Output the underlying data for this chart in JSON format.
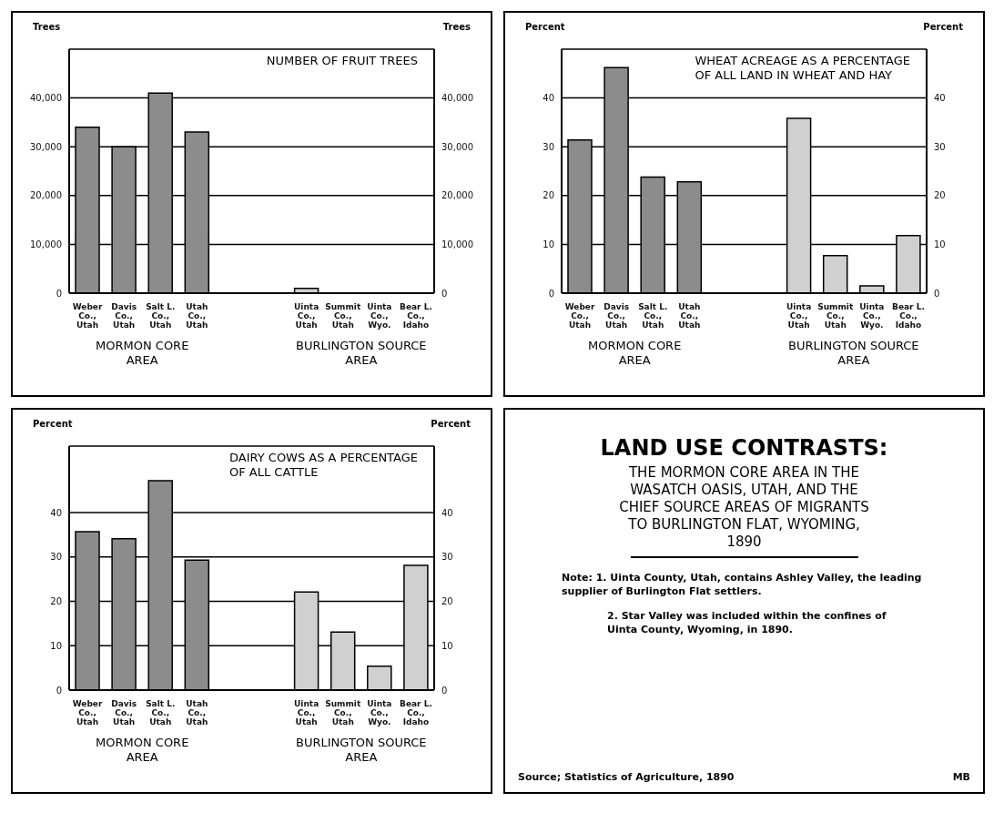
{
  "chart_data": [
    {
      "type": "bar",
      "title": "NUMBER OF FRUIT TREES",
      "ylabel": "Trees",
      "y2label": "Trees",
      "categories": [
        "Weber\nCo.,\nUtah",
        "Davis\nCo.,\nUtah",
        "Salt L.\nCo.,\nUtah",
        "Utah\nCo.,\nUtah",
        null,
        null,
        "Uinta\nCo.,\nUtah",
        "Summit\nCo.,\nUtah",
        "Uinta\nCo.,\nWyo.",
        "Bear L.\nCo.,\nIdaho"
      ],
      "values": [
        34000,
        30000,
        41000,
        33000,
        null,
        null,
        1000,
        0,
        0,
        0
      ],
      "colors": [
        "#8c8c8c",
        "#8c8c8c",
        "#8c8c8c",
        "#8c8c8c",
        null,
        null,
        "#d0d0d0",
        "#d0d0d0",
        "#d0d0d0",
        "#d0d0d0"
      ],
      "ylim": [
        0,
        50000
      ],
      "yticks": [
        0,
        {
          "value": 10000,
          "label": "10,000"
        },
        {
          "value": 20000,
          "label": "20,000"
        },
        {
          "value": 30000,
          "label": "30,000"
        },
        {
          "value": 40000,
          "label": "40,000"
        }
      ],
      "y2lim": [
        0,
        50000
      ],
      "y2ticks": [
        0,
        {
          "value": 10000,
          "label": "10,000"
        },
        {
          "value": 20000,
          "label": "20,000"
        },
        {
          "value": 30000,
          "label": "30,000"
        },
        {
          "value": 40000,
          "label": "40,000"
        }
      ],
      "grid": "y",
      "annotations": [
        "MORMON CORE\nAREA",
        "BURLINGTON SOURCE\nAREA"
      ]
    },
    {
      "type": "bar",
      "title": "WHEAT ACREAGE AS A PERCENTAGE\nOF ALL LAND IN WHEAT AND HAY",
      "ylabel": "Percent",
      "y2label": "Percent",
      "categories": [
        "Weber\nCo.,\nUtah",
        "Davis\nCo.,\nUtah",
        "Salt L.\nCo.,\nUtah",
        "Utah\nCo.,\nUtah",
        null,
        null,
        "Uinta\nCo.,\nUtah",
        "Summit\nCo.,\nUtah",
        "Uinta\nCo.,\nWyo.",
        "Bear L.\nCo.,\nIdaho"
      ],
      "values": [
        31.4,
        46.2,
        23.8,
        22.8,
        null,
        null,
        35.8,
        7.7,
        1.5,
        11.8
      ],
      "colors": [
        "#8c8c8c",
        "#8c8c8c",
        "#8c8c8c",
        "#8c8c8c",
        null,
        null,
        "#d0d0d0",
        "#d0d0d0",
        "#d0d0d0",
        "#d0d0d0"
      ],
      "ylim": [
        0,
        50
      ],
      "yticks": [
        0,
        10,
        20,
        30,
        40
      ],
      "y2lim": [
        0,
        50
      ],
      "y2ticks": [
        0,
        10,
        20,
        30,
        40
      ],
      "grid": "y",
      "annotations": [
        "MORMON CORE\nAREA",
        "BURLINGTON SOURCE\nAREA"
      ]
    },
    {
      "type": "bar",
      "title": "DAIRY COWS AS A PERCENTAGE\nOF ALL CATTLE",
      "ylabel": "Percent",
      "y2label": "Percent",
      "categories": [
        "Weber\nCo.,\nUtah",
        "Davis\nCo.,\nUtah",
        "Salt L.\nCo.,\nUtah",
        "Utah\nCo.,\nUtah",
        null,
        null,
        "Uinta\nCo.,\nUtah",
        "Summit\nCo.,\nUtah",
        "Uinta\nCo.,\nWyo.",
        "Bear L.\nCo.,\nIdaho"
      ],
      "values": [
        35.7,
        34.1,
        47.2,
        29.3,
        null,
        null,
        22.1,
        13.1,
        5.4,
        28.1
      ],
      "colors": [
        "#8c8c8c",
        "#8c8c8c",
        "#8c8c8c",
        "#8c8c8c",
        null,
        null,
        "#d0d0d0",
        "#d0d0d0",
        "#d0d0d0",
        "#d0d0d0"
      ],
      "ylim": [
        0,
        55
      ],
      "yticks": [
        0,
        10,
        20,
        30,
        40
      ],
      "y2lim": [
        0,
        55
      ],
      "y2ticks": [
        0,
        10,
        20,
        30,
        40
      ],
      "grid": "y",
      "annotations": [
        "MORMON CORE\nAREA",
        "BURLINGTON SOURCE\nAREA"
      ]
    },
    {
      "type": "other",
      "title": "LAND USE CONTRASTS:",
      "subtitle": "THE MORMON CORE AREA IN THE\nWASATCH OASIS, UTAH, AND THE\nCHIEF SOURCE AREAS OF MIGRANTS\nTO BURLINGTON FLAT, WYOMING,\n1890",
      "annotations": [
        "Note: 1. Uinta County, Utah, contains Ashley Valley, the leading supplier of Burlington Flat settlers.",
        "2. Star Valley was included within the confines of Uinta County, Wyoming, in 1890.",
        "Source; Statistics of Agriculture, 1890",
        "MB"
      ]
    }
  ]
}
